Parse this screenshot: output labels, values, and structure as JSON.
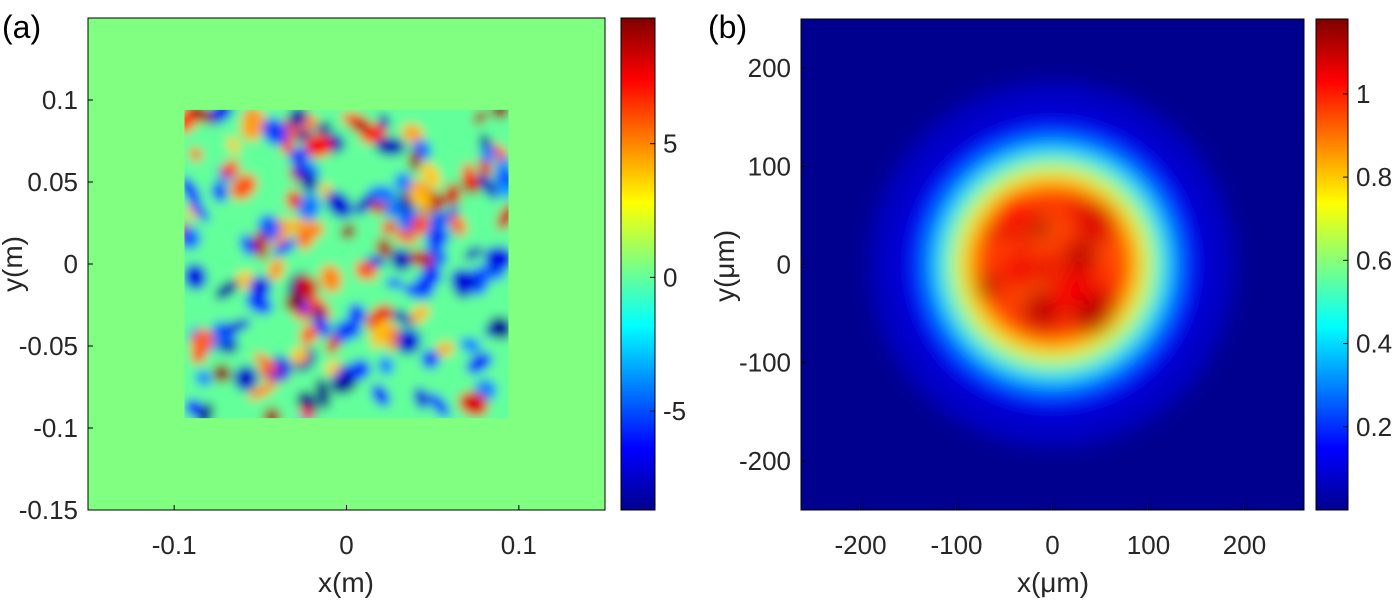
{
  "chart_data": [
    {
      "type": "heatmap",
      "panel_label": "(a)",
      "xlabel": "x(m)",
      "ylabel": "y(m)",
      "xlim": [
        -0.15,
        0.15
      ],
      "ylim": [
        -0.15,
        0.15
      ],
      "x_ticks": [
        -0.1,
        0,
        0.1
      ],
      "x_tick_labels": [
        "-0.1",
        "0",
        "0.1"
      ],
      "y_ticks": [
        -0.15,
        -0.1,
        -0.05,
        0,
        0.05,
        0.1
      ],
      "y_tick_labels": [
        "-0.15",
        "-0.1",
        "-0.05",
        "0",
        "0.05",
        "0.1"
      ],
      "colormap": "jet",
      "clim": [
        -8.7,
        9.7
      ],
      "colorbar_ticks": [
        -5,
        0,
        5
      ],
      "colorbar_tick_labels": [
        "-5",
        "0",
        "5"
      ],
      "background_value": 0,
      "pattern_region": {
        "x": [
          -0.094,
          0.094
        ],
        "y": [
          -0.094,
          0.094
        ]
      },
      "pattern": "random speckle with values between about -8.7 and 9.7"
    },
    {
      "type": "heatmap",
      "panel_label": "(b)",
      "xlabel": "x(μm)",
      "ylabel": "y(μm)",
      "xlim": [
        -262,
        262
      ],
      "ylim": [
        -250,
        250
      ],
      "x_ticks": [
        -200,
        -100,
        0,
        100,
        200
      ],
      "x_tick_labels": [
        "-200",
        "-100",
        "0",
        "100",
        "200"
      ],
      "y_ticks": [
        -200,
        -100,
        0,
        100,
        200
      ],
      "y_tick_labels": [
        "-200",
        "-100",
        "0",
        "100",
        "200"
      ],
      "colormap": "jet",
      "clim": [
        0,
        1.18
      ],
      "colorbar_ticks": [
        0.2,
        0.4,
        0.6,
        0.8,
        1
      ],
      "colorbar_tick_labels": [
        "0.2",
        "0.4",
        "0.6",
        "0.8",
        "1"
      ],
      "spot_center": [
        0,
        0
      ],
      "spot_radius": 95,
      "pattern": "focused spot with speckled top near 1"
    }
  ]
}
